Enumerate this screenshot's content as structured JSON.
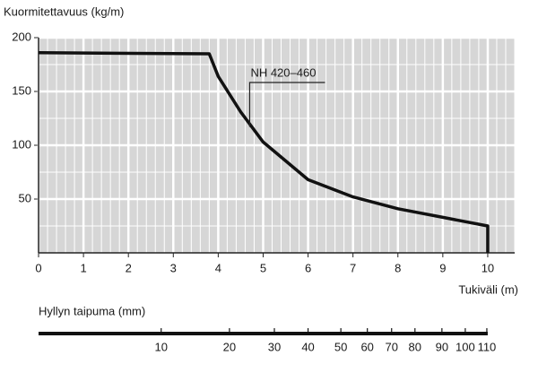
{
  "chart_data": {
    "type": "line",
    "title": "Kuormitettavuus (kg/m)",
    "x_label": "Tukiväli (m)",
    "x": [
      0,
      3.8,
      4.0,
      4.5,
      5,
      6,
      7,
      8,
      9,
      10,
      10
    ],
    "series": [
      {
        "name": "NH 420–460",
        "color": "#111111",
        "values": [
          186,
          185,
          164,
          131,
          103,
          68,
          52,
          41,
          33,
          25,
          0
        ]
      }
    ],
    "xlim": [
      0,
      10.6
    ],
    "xticks": [
      0,
      1,
      2,
      3,
      4,
      5,
      6,
      7,
      8,
      9,
      10
    ],
    "ylim": [
      0,
      200
    ],
    "yticks": [
      50,
      100,
      150,
      200
    ],
    "grid": true,
    "annotation": {
      "text": "NH 420–460",
      "x": 4.7,
      "y": 117
    },
    "deflection_axis": {
      "label": "Hyllyn taipuma (mm)",
      "ticks": [
        10,
        20,
        30,
        40,
        50,
        60,
        70,
        80,
        90,
        100,
        110
      ],
      "span_at_tick": [
        2.73,
        4.25,
        5.25,
        6.0,
        6.73,
        7.32,
        7.86,
        8.38,
        8.98,
        9.5,
        9.98
      ]
    }
  }
}
